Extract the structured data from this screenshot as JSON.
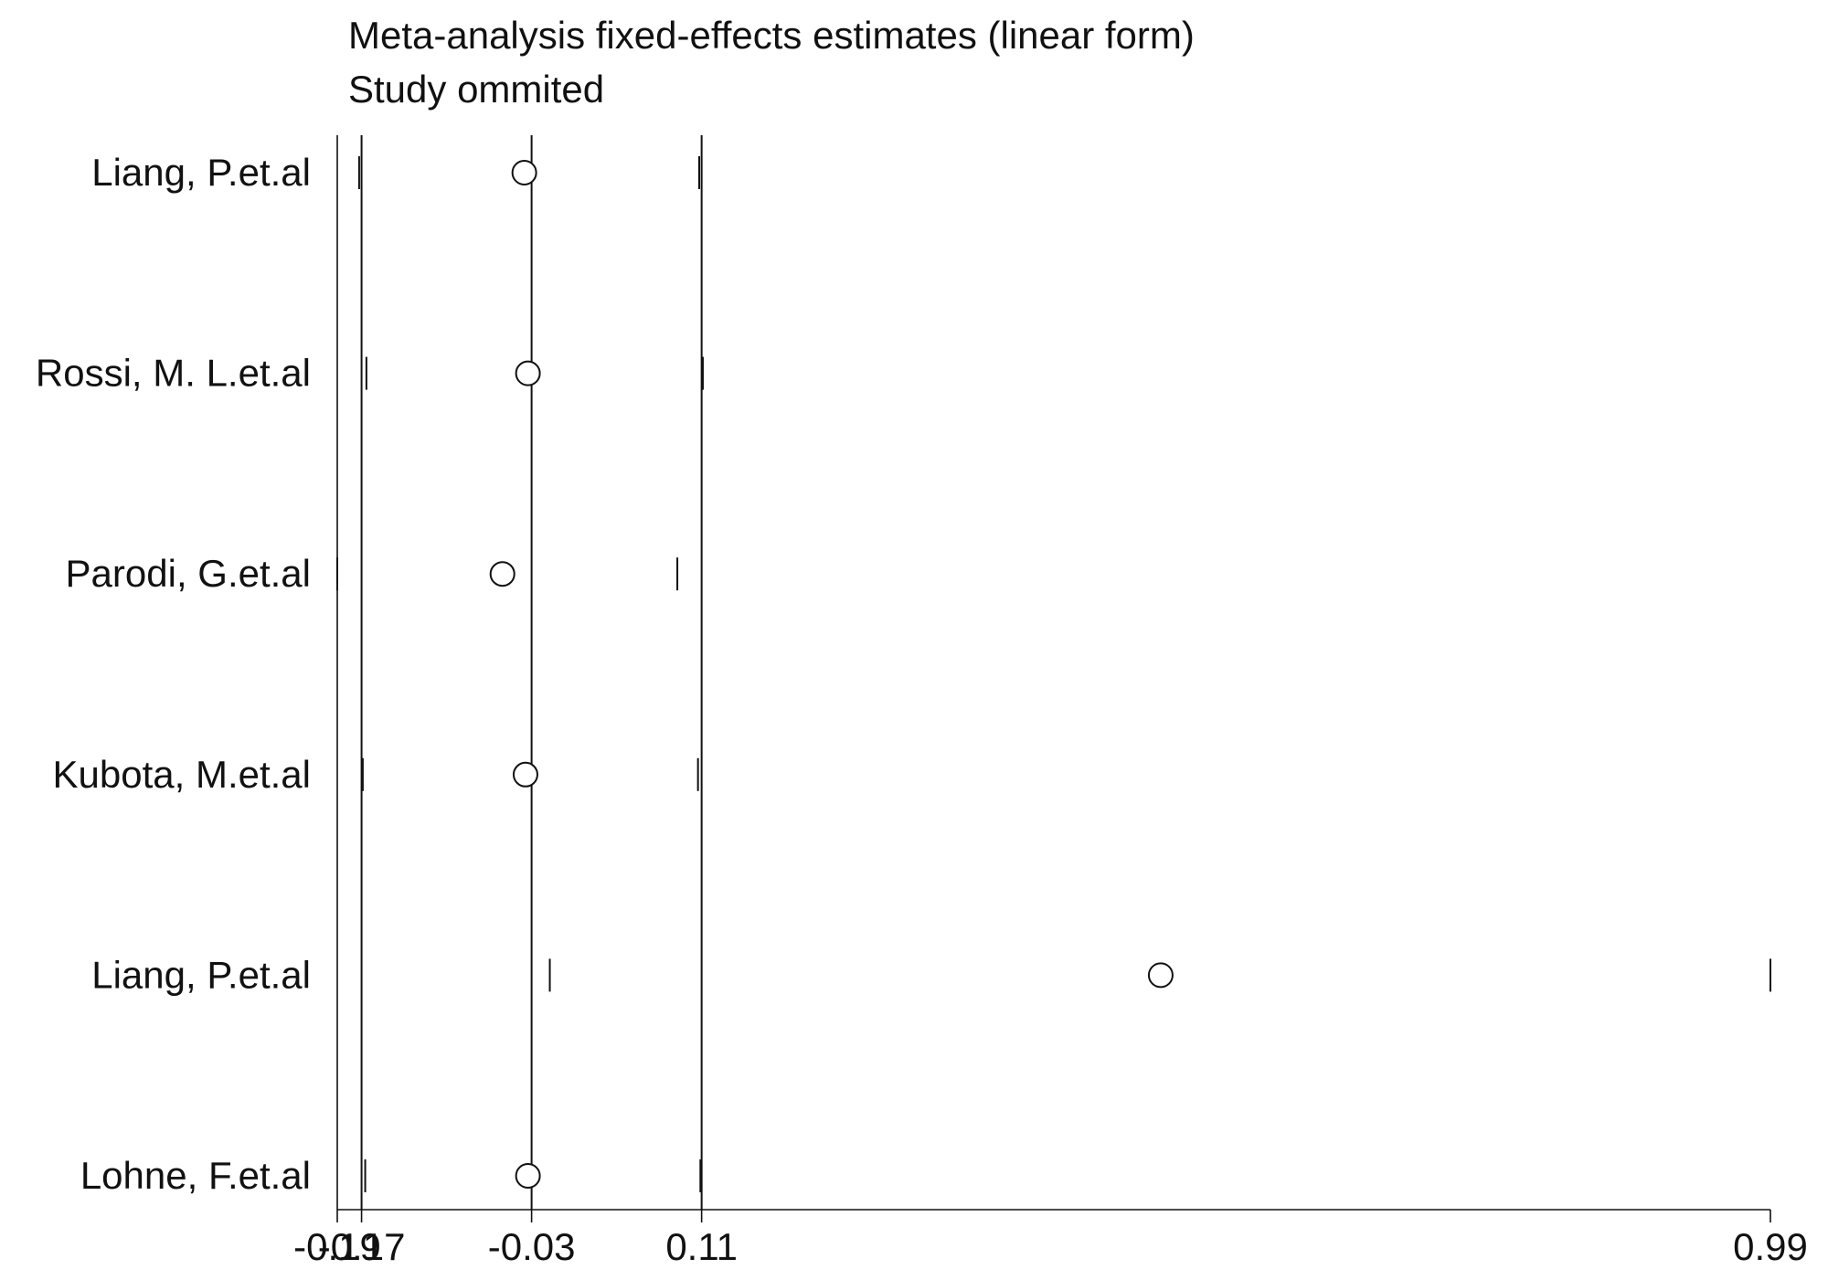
{
  "chart_data": {
    "type": "scatter",
    "title": "Meta-analysis fixed-effects estimates (linear form)",
    "subtitle": "Study ommited",
    "x_ticks": [
      "-0.19",
      "-0.17",
      "-0.03",
      "0.11",
      "0.99"
    ],
    "xlim": [
      -0.19,
      0.99
    ],
    "reference_lines": [
      -0.17,
      -0.03,
      0.11
    ],
    "studies": [
      {
        "label": "Liang, P.et.al",
        "estimate": -0.036,
        "lower": -0.172,
        "upper": 0.108
      },
      {
        "label": "Rossi, M. L.et.al",
        "estimate": -0.033,
        "lower": -0.166,
        "upper": 0.111
      },
      {
        "label": "Parodi, G.et.al",
        "estimate": -0.054,
        "lower": -0.19,
        "upper": 0.09
      },
      {
        "label": "Kubota, M.et.al",
        "estimate": -0.035,
        "lower": -0.169,
        "upper": 0.107
      },
      {
        "label": "Liang, P.et.al",
        "estimate": 0.488,
        "lower": -0.015,
        "upper": 0.99
      },
      {
        "label": "Lohne, F.et.al",
        "estimate": -0.033,
        "lower": -0.167,
        "upper": 0.109
      }
    ]
  }
}
